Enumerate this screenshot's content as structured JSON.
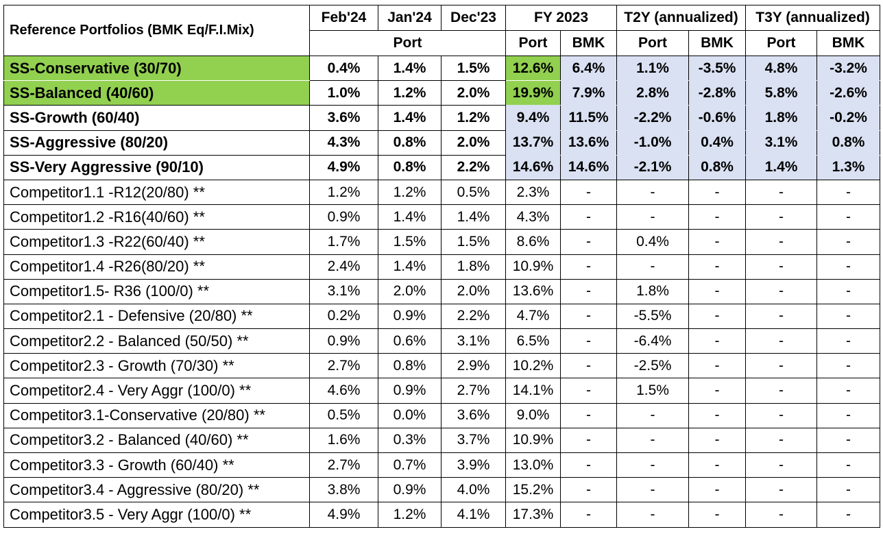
{
  "header": {
    "title": "Reference Portfolios (BMK Eq/F.I.Mix)",
    "periods": [
      "Feb'24",
      "Jan'24",
      "Dec'23",
      "FY 2023",
      "T2Y (annualized)",
      "T3Y (annualized)"
    ],
    "sub_port": "Port",
    "sub_labels": [
      "Port",
      "BMK",
      "Port",
      "BMK",
      "Port",
      "BMK"
    ]
  },
  "highlight_colors": {
    "green": "#92d050",
    "blue": "#dae1f2"
  },
  "ss_rows": [
    {
      "name": "SS-Conservative (30/70)",
      "values": [
        "0.4%",
        "1.4%",
        "1.5%",
        "12.6%",
        "6.4%",
        "1.1%",
        "-3.5%",
        "4.8%",
        "-3.2%"
      ]
    },
    {
      "name": "SS-Balanced (40/60)",
      "values": [
        "1.0%",
        "1.2%",
        "2.0%",
        "19.9%",
        "7.9%",
        "2.8%",
        "-2.8%",
        "5.8%",
        "-2.6%"
      ]
    },
    {
      "name": "SS-Growth (60/40)",
      "values": [
        "3.6%",
        "1.4%",
        "1.2%",
        "9.4%",
        "11.5%",
        "-2.2%",
        "-0.6%",
        "1.8%",
        "-0.2%"
      ]
    },
    {
      "name": "SS-Aggressive (80/20)",
      "values": [
        "4.3%",
        "0.8%",
        "2.0%",
        "13.7%",
        "13.6%",
        "-1.0%",
        "0.4%",
        "3.1%",
        "0.8%"
      ]
    },
    {
      "name": "SS-Very Aggressive (90/10)",
      "values": [
        "4.9%",
        "0.8%",
        "2.2%",
        "14.6%",
        "14.6%",
        "-2.1%",
        "0.8%",
        "1.4%",
        "1.3%"
      ]
    }
  ],
  "competitor_groups": [
    [
      {
        "name": "Competitor1.1 -R12(20/80) **",
        "values": [
          "1.2%",
          "1.2%",
          "0.5%",
          "2.3%",
          "-",
          "-",
          "-",
          "-",
          "-"
        ]
      },
      {
        "name": "Competitor1.2 -R16(40/60) **",
        "values": [
          "0.9%",
          "1.4%",
          "1.4%",
          "4.3%",
          "-",
          "-",
          "-",
          "-",
          "-"
        ]
      },
      {
        "name": "Competitor1.3 -R22(60/40) **",
        "values": [
          "1.7%",
          "1.5%",
          "1.5%",
          "8.6%",
          "-",
          "0.4%",
          "-",
          "-",
          "-"
        ]
      },
      {
        "name": "Competitor1.4 -R26(80/20) **",
        "values": [
          "2.4%",
          "1.4%",
          "1.8%",
          "10.9%",
          "-",
          "-",
          "-",
          "-",
          "-"
        ]
      },
      {
        "name": "Competitor1.5- R36 (100/0) **",
        "values": [
          "3.1%",
          "2.0%",
          "2.0%",
          "13.6%",
          "-",
          "1.8%",
          "-",
          "-",
          "-"
        ]
      }
    ],
    [
      {
        "name": "Competitor2.1  - Defensive  (20/80) **",
        "values": [
          "0.2%",
          "0.9%",
          "2.2%",
          "4.7%",
          "-",
          "-5.5%",
          "-",
          "-",
          "-"
        ]
      },
      {
        "name": "Competitor2.2  - Balanced (50/50) **",
        "values": [
          "0.9%",
          "0.6%",
          "3.1%",
          "6.5%",
          "-",
          "-6.4%",
          "-",
          "-",
          "-"
        ]
      },
      {
        "name": "Competitor2.3  - Growth  (70/30) **",
        "values": [
          "2.7%",
          "0.8%",
          "2.9%",
          "10.2%",
          "-",
          "-2.5%",
          "-",
          "-",
          "-"
        ]
      },
      {
        "name": "Competitor2.4  - Very Aggr  (100/0) **",
        "values": [
          "4.6%",
          "0.9%",
          "2.7%",
          "14.1%",
          "-",
          "1.5%",
          "-",
          "-",
          "-"
        ]
      }
    ],
    [
      {
        "name": "Competitor3.1-Conservative (20/80) **",
        "values": [
          "0.5%",
          "0.0%",
          "3.6%",
          "9.0%",
          "-",
          "-",
          "-",
          "-",
          "-"
        ]
      },
      {
        "name": "Competitor3.2 - Balanced  (40/60) **",
        "values": [
          "1.6%",
          "0.3%",
          "3.7%",
          "10.9%",
          "-",
          "-",
          "-",
          "-",
          "-"
        ]
      },
      {
        "name": "Competitor3.3 - Growth  (60/40) **",
        "values": [
          "2.7%",
          "0.7%",
          "3.9%",
          "13.0%",
          "-",
          "-",
          "-",
          "-",
          "-"
        ]
      },
      {
        "name": "Competitor3.4 - Aggressive  (80/20) **",
        "values": [
          "3.8%",
          "0.9%",
          "4.0%",
          "15.2%",
          "-",
          "-",
          "-",
          "-",
          "-"
        ]
      },
      {
        "name": "Competitor3.5  - Very Aggr (100/0) **",
        "values": [
          "4.9%",
          "1.2%",
          "4.1%",
          "17.3%",
          "-",
          "-",
          "-",
          "-",
          "-"
        ]
      }
    ]
  ]
}
